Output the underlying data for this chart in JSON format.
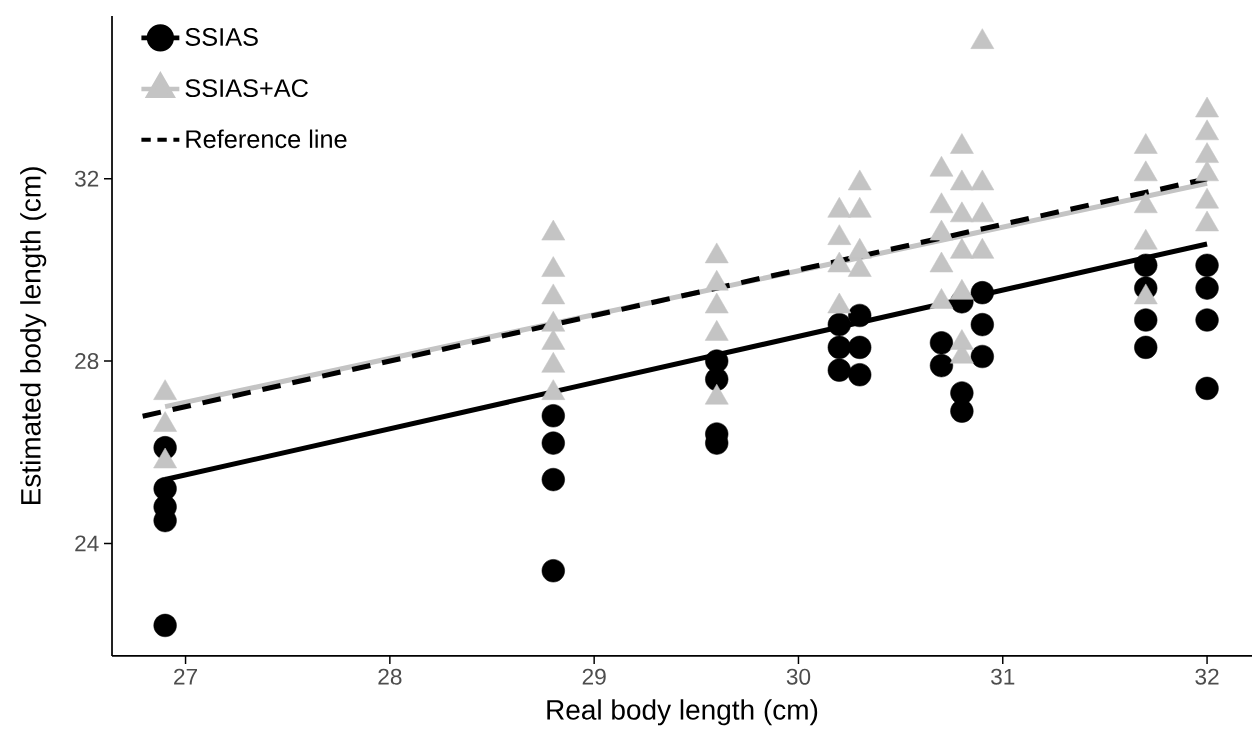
{
  "chart_data": {
    "type": "scatter",
    "xlabel": "Real body length (cm)",
    "ylabel": "Estimated body length (cm)",
    "xlim": [
      26.64,
      32.22
    ],
    "ylim": [
      21.53,
      35.57
    ],
    "xticks": [
      27,
      28,
      29,
      30,
      31,
      32
    ],
    "yticks": [
      24,
      28,
      32
    ],
    "legend": "top left",
    "series": [
      {
        "name": "SSIAS",
        "color": "#000000",
        "marker": "circle",
        "x": [
          26.9,
          26.9,
          26.9,
          26.9,
          26.9,
          28.8,
          28.8,
          28.8,
          28.8,
          29.6,
          29.6,
          29.6,
          29.6,
          30.2,
          30.2,
          30.2,
          30.3,
          30.3,
          30.3,
          30.7,
          30.7,
          30.8,
          30.8,
          30.8,
          30.9,
          30.9,
          30.9,
          31.7,
          31.7,
          31.7,
          31.7,
          32.0,
          32.0,
          32.0,
          32.0
        ],
        "values": [
          22.2,
          24.5,
          24.8,
          25.2,
          26.1,
          23.4,
          25.4,
          26.2,
          26.8,
          26.2,
          26.4,
          27.6,
          28.0,
          27.8,
          28.3,
          28.8,
          27.7,
          28.3,
          29.0,
          27.9,
          28.4,
          26.9,
          27.3,
          29.3,
          28.1,
          28.8,
          29.5,
          28.3,
          28.9,
          29.6,
          30.1,
          27.4,
          28.9,
          29.6,
          30.1
        ]
      },
      {
        "name": "SSIAS+AC",
        "color": "#c4c4c4",
        "marker": "triangle",
        "x": [
          26.9,
          26.9,
          26.9,
          28.8,
          28.8,
          28.8,
          28.8,
          28.8,
          28.8,
          28.8,
          29.6,
          29.6,
          29.6,
          29.6,
          29.6,
          30.2,
          30.2,
          30.2,
          30.2,
          30.3,
          30.3,
          30.3,
          30.3,
          30.7,
          30.7,
          30.7,
          30.7,
          30.7,
          30.8,
          30.8,
          30.8,
          30.8,
          30.8,
          30.8,
          30.8,
          30.9,
          30.9,
          30.9,
          30.9,
          31.7,
          31.7,
          31.7,
          31.7,
          31.7,
          32.0,
          32.0,
          32.0,
          32.0,
          32.0,
          32.0
        ],
        "values": [
          25.8,
          26.6,
          27.3,
          27.3,
          27.9,
          28.4,
          28.8,
          29.4,
          30.0,
          30.8,
          27.2,
          28.6,
          29.2,
          29.7,
          30.3,
          29.2,
          30.1,
          30.7,
          31.3,
          30.0,
          30.4,
          31.3,
          31.9,
          29.3,
          30.1,
          30.8,
          31.4,
          32.2,
          28.1,
          28.4,
          29.5,
          30.4,
          31.2,
          31.9,
          32.7,
          30.4,
          31.2,
          31.9,
          35.0,
          29.4,
          30.6,
          31.4,
          32.1,
          32.7,
          31.0,
          31.5,
          32.1,
          32.5,
          33.0,
          33.5
        ]
      },
      {
        "type": "line",
        "color": "#c4c4c4",
        "line_style": "solid",
        "x": [
          26.9,
          32.0
        ],
        "values": [
          27.0,
          31.9
        ]
      },
      {
        "type": "line",
        "color": "#000000",
        "line_style": "solid",
        "x": [
          26.9,
          32.0
        ],
        "values": [
          25.4,
          30.57
        ]
      },
      {
        "name": "Reference line",
        "type": "line",
        "color": "#000000",
        "line_style": "dashed",
        "x": [
          26.79,
          32.0
        ],
        "values": [
          26.79,
          32.0
        ]
      }
    ]
  }
}
